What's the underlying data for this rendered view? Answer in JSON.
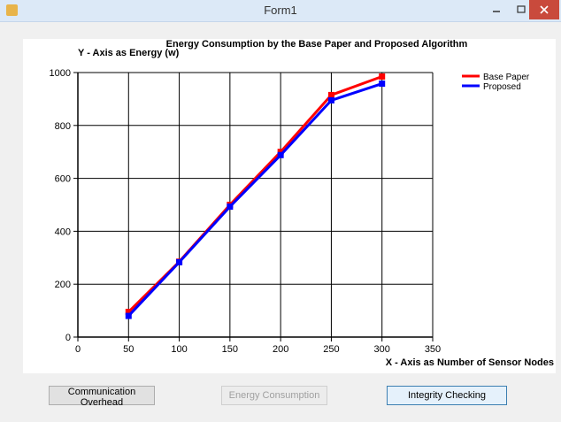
{
  "window": {
    "title": "Form1"
  },
  "chart_data": {
    "type": "line",
    "title": "Energy Consumption by the Base Paper and Proposed Algorithm",
    "y_label": "Y - Axis as Energy (w)",
    "x_label": "X - Axis as Number of Sensor Nodes",
    "x": [
      50,
      100,
      150,
      200,
      250,
      300
    ],
    "series": [
      {
        "name": "Base Paper",
        "color": "#ff0000",
        "values": [
          95,
          285,
          500,
          700,
          915,
          985
        ]
      },
      {
        "name": "Proposed",
        "color": "#0000ff",
        "values": [
          80,
          283,
          493,
          688,
          895,
          958
        ]
      }
    ],
    "xlim": [
      0,
      350
    ],
    "xticks": [
      0,
      50,
      100,
      150,
      200,
      250,
      300,
      350
    ],
    "ylim": [
      0,
      1000
    ],
    "yticks": [
      0,
      200,
      400,
      600,
      800,
      1000
    ],
    "grid": true,
    "legend": "top-right"
  },
  "buttons": [
    {
      "label": "Communication Overhead",
      "enabled": true
    },
    {
      "label": "Energy Consumption",
      "enabled": false
    },
    {
      "label": "Integrity Checking",
      "enabled": true,
      "focused": true
    }
  ]
}
